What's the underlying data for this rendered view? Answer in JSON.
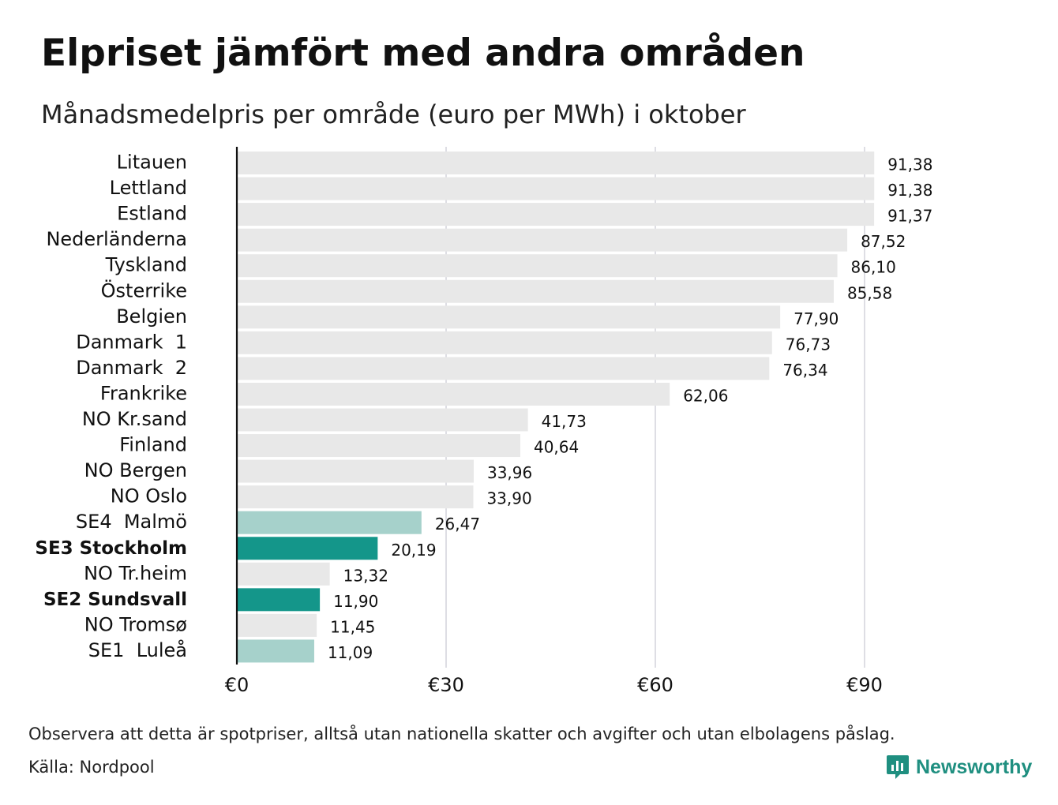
{
  "title": "Elpriset jämfört med andra områden",
  "subtitle": "Månadsmedelpris per område (euro per MWh) i oktober",
  "note": "Observera att detta är spotpriser, alltså utan nationella skatter och avgifter och utan elbolagens påslag.",
  "source": "Källa: Nordpool",
  "brand": {
    "name": "Newsworthy",
    "icon": "newsworthy-logo-icon",
    "color": "#1f8f80"
  },
  "colors": {
    "default_bar": "#e8e8e8",
    "light_highlight": "#a6d1cb",
    "dark_highlight": "#14968a",
    "grid": "#c9c9d2",
    "axis": "#111111"
  },
  "chart_data": {
    "type": "bar",
    "orientation": "horizontal",
    "categories": [
      "Litauen",
      "Lettland",
      "Estland",
      "Nederländerna",
      "Tyskland",
      "Österrike",
      "Belgien",
      "Danmark  1",
      "Danmark  2",
      "Frankrike",
      "NO Kr.sand",
      "Finland",
      "NO Bergen",
      "NO Oslo",
      "SE4  Malmö",
      "SE3 Stockholm",
      "NO Tr.heim",
      "SE2 Sundsvall",
      "NO Tromsø",
      "SE1  Luleå"
    ],
    "values": [
      91.38,
      91.38,
      91.37,
      87.52,
      86.1,
      85.58,
      77.9,
      76.73,
      76.34,
      62.06,
      41.73,
      40.64,
      33.96,
      33.9,
      26.47,
      20.19,
      13.32,
      11.9,
      11.45,
      11.09
    ],
    "value_labels": [
      "91,38",
      "91,38",
      "91,37",
      "87,52",
      "86,10",
      "85,58",
      "77,90",
      "76,73",
      "76,34",
      "62,06",
      "41,73",
      "40,64",
      "33,96",
      "33,90",
      "26,47",
      "20,19",
      "13,32",
      "11,90",
      "11,45",
      "11,09"
    ],
    "highlight": [
      "none",
      "none",
      "none",
      "none",
      "none",
      "none",
      "none",
      "none",
      "none",
      "none",
      "none",
      "none",
      "none",
      "none",
      "light",
      "dark",
      "none",
      "dark",
      "none",
      "light"
    ],
    "bold_labels": [
      "SE3 Stockholm",
      "SE2 Sundsvall"
    ],
    "xticks": [
      0,
      30,
      60,
      90
    ],
    "xtick_labels": [
      "€0",
      "€30",
      "€60",
      "€90"
    ],
    "xlim": [
      0,
      90
    ],
    "grid": "vertical",
    "xlabel": "",
    "ylabel": ""
  }
}
